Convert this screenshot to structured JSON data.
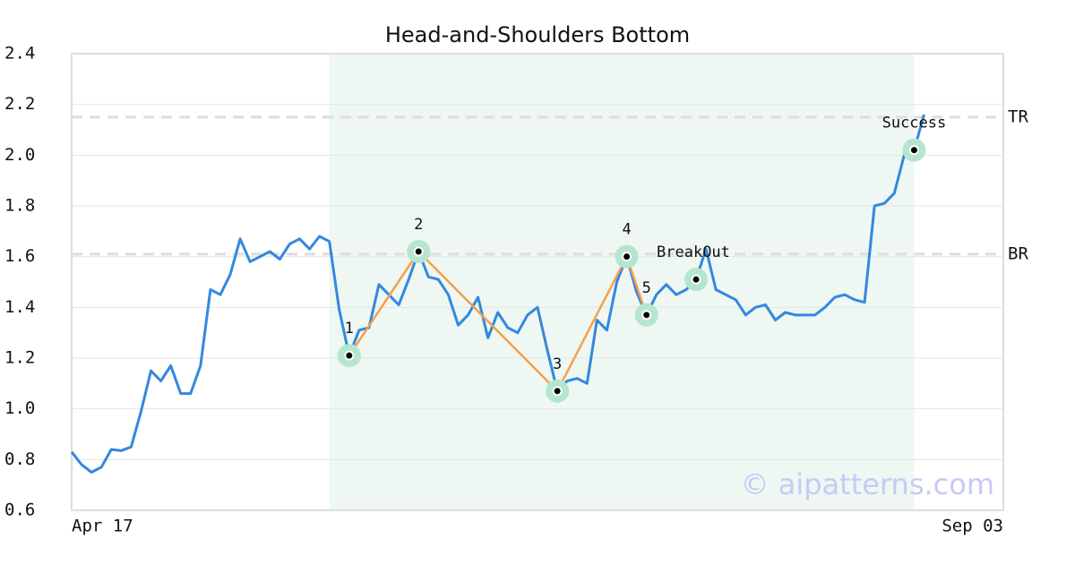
{
  "chart_data": {
    "type": "line",
    "title": "Head-and-Shoulders Bottom",
    "categories": [
      "Apr 17",
      null,
      null,
      null,
      null,
      null,
      null,
      null,
      null,
      null,
      null,
      null,
      null,
      null,
      null,
      null,
      null,
      null,
      null,
      null,
      null,
      null,
      null,
      null,
      null,
      null,
      null,
      null,
      null,
      null,
      null,
      null,
      null,
      null,
      null,
      null,
      null,
      null,
      null,
      null,
      null,
      null,
      null,
      null,
      null,
      null,
      null,
      null,
      null,
      null,
      null,
      null,
      null,
      null,
      null,
      null,
      null,
      null,
      null,
      null,
      null,
      null,
      null,
      null,
      null,
      null,
      null,
      null,
      null,
      null,
      null,
      null,
      null,
      null,
      null,
      null,
      null,
      null,
      null,
      null,
      null,
      null,
      null,
      null,
      null,
      null,
      null,
      null,
      null,
      null,
      null,
      null,
      null,
      null,
      "Sep 03"
    ],
    "series": [
      {
        "color": "#3388e0",
        "values": [
          0.83,
          0.78,
          0.75,
          0.77,
          0.84,
          0.835,
          0.85,
          0.99,
          1.15,
          1.11,
          1.17,
          1.06,
          1.06,
          1.17,
          1.47,
          1.45,
          1.53,
          1.67,
          1.58,
          1.6,
          1.62,
          1.59,
          1.65,
          1.67,
          1.63,
          1.68,
          1.66,
          1.39,
          1.21,
          1.31,
          1.32,
          1.49,
          1.45,
          1.41,
          1.51,
          1.62,
          1.52,
          1.51,
          1.45,
          1.33,
          1.37,
          1.44,
          1.28,
          1.38,
          1.32,
          1.3,
          1.37,
          1.4,
          1.23,
          1.07,
          1.11,
          1.12,
          1.1,
          1.35,
          1.31,
          1.5,
          1.6,
          1.46,
          1.37,
          1.45,
          1.49,
          1.45,
          1.47,
          1.51,
          1.63,
          1.47,
          1.45,
          1.43,
          1.37,
          1.4,
          1.41,
          1.35,
          1.38,
          1.37,
          1.37,
          1.37,
          1.4,
          1.44,
          1.45,
          1.43,
          1.42,
          1.8,
          1.81,
          1.85,
          2.0,
          2.02,
          2.16,
          null,
          null,
          null,
          null,
          null,
          null,
          null,
          null
        ]
      }
    ],
    "ylim": [
      0.6,
      2.4
    ],
    "yticks": [
      0.6,
      0.8,
      {
        "value": 1,
        "label": "1.0"
      },
      1.2,
      1.4,
      1.6,
      1.8,
      {
        "value": 2,
        "label": "2.0"
      },
      2.2,
      2.4
    ],
    "grid": true,
    "highlight_range": [
      26,
      85
    ],
    "pattern": {
      "color": "#f5a04a",
      "labels": [
        "1",
        "2",
        "3",
        "4",
        "5"
      ],
      "x": [
        28,
        35,
        49,
        56,
        58
      ],
      "values": [
        1.21,
        1.62,
        1.07,
        1.6,
        1.37
      ]
    },
    "signals": {
      "labels": [
        "BreakOut",
        "Success"
      ],
      "x": [
        63,
        85
      ],
      "values": [
        1.51,
        2.02
      ]
    },
    "levels": [
      {
        "label": "TR",
        "value": 2.15
      },
      {
        "label": "BR",
        "value": 1.61
      }
    ],
    "watermark": "© aipatterns.com"
  }
}
